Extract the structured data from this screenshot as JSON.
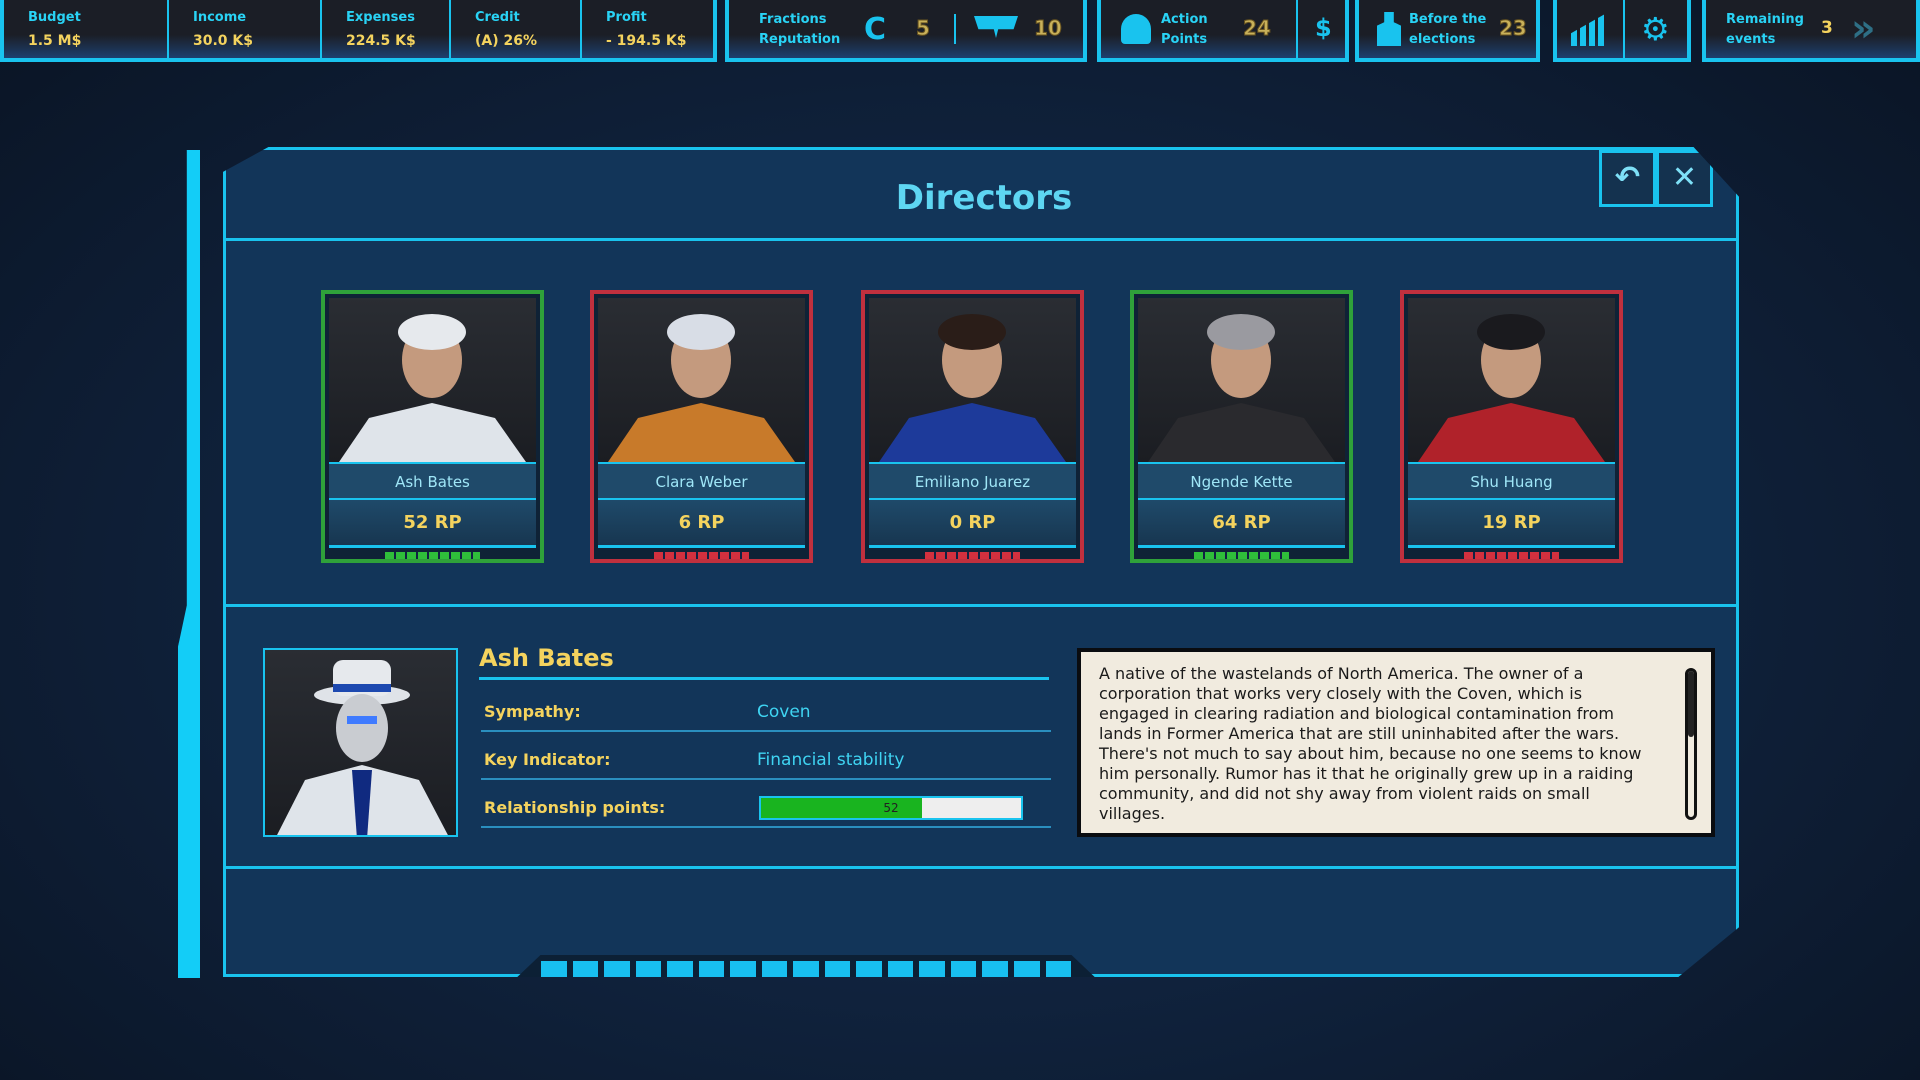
{
  "topbar": {
    "budget": {
      "label": "Budget",
      "value": "1.5 M$"
    },
    "income": {
      "label": "Income",
      "value": "30.0 K$"
    },
    "expenses": {
      "label": "Expenses",
      "value": "224.5 K$"
    },
    "credit": {
      "label": "Credit",
      "value": "(A) 26%"
    },
    "profit": {
      "label": "Profit",
      "value": "- 194.5 K$"
    },
    "fractions": {
      "label1": "Fractions",
      "label2": "Reputation",
      "coven": "5",
      "second": "10"
    },
    "action": {
      "label1": "Action",
      "label2": "Points",
      "value": "24",
      "currency_icon": "$"
    },
    "elections": {
      "label1": "Before the",
      "label2": "elections",
      "value": "23"
    },
    "remaining": {
      "label1": "Remaining",
      "label2": "events",
      "value": "3"
    }
  },
  "modal": {
    "title": "Directors",
    "back_icon": "↶",
    "close_icon": "✕"
  },
  "directors": [
    {
      "name": "Ash Bates",
      "rp": "52 RP",
      "status": "green"
    },
    {
      "name": "Clara Weber",
      "rp": "6 RP",
      "status": "red"
    },
    {
      "name": "Emiliano Juarez",
      "rp": "0 RP",
      "status": "red"
    },
    {
      "name": "Ngende Kette",
      "rp": "64 RP",
      "status": "green"
    },
    {
      "name": "Shu Huang",
      "rp": "19 RP",
      "status": "red"
    }
  ],
  "detail": {
    "name": "Ash Bates",
    "sympathy_label": "Sympathy:",
    "sympathy": "Coven",
    "key_label": "Key Indicator:",
    "key": "Financial stability",
    "rel_label": "Relationship points:",
    "rel_value": "52",
    "rel_percent": 62,
    "description": "A native of the wastelands of North America. The owner of a corporation that works very closely with the Coven, which is engaged in clearing radiation and biological contamination from lands in Former America that are still uninhabited after the wars. There's not much to say about him, because no one seems to know him personally. Rumor has it that he originally grew up in a raiding community, and did not shy away from violent raids on small villages."
  }
}
